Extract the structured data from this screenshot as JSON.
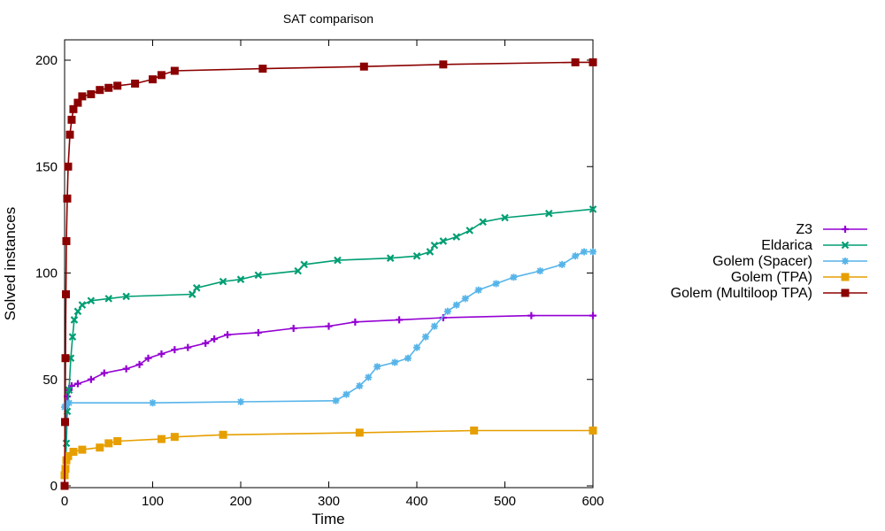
{
  "chart_data": {
    "type": "line",
    "title": "SAT comparison",
    "xlabel": "Time",
    "ylabel": "Solved instances",
    "xlim": [
      0,
      600
    ],
    "ylim": [
      0,
      210
    ],
    "xticks": [
      0,
      100,
      200,
      300,
      400,
      500,
      600
    ],
    "yticks": [
      0,
      50,
      100,
      150,
      200
    ],
    "grid": false,
    "legend_position": "right",
    "series": [
      {
        "name": "Z3",
        "color": "#9400d3",
        "marker": "plus",
        "points": [
          [
            0,
            0
          ],
          [
            1,
            30
          ],
          [
            2,
            38
          ],
          [
            3,
            42
          ],
          [
            5,
            45
          ],
          [
            8,
            47
          ],
          [
            15,
            48
          ],
          [
            30,
            50
          ],
          [
            45,
            53
          ],
          [
            70,
            55
          ],
          [
            85,
            57
          ],
          [
            95,
            60
          ],
          [
            110,
            62
          ],
          [
            125,
            64
          ],
          [
            140,
            65
          ],
          [
            160,
            67
          ],
          [
            170,
            69
          ],
          [
            185,
            71
          ],
          [
            220,
            72
          ],
          [
            260,
            74
          ],
          [
            300,
            75
          ],
          [
            330,
            77
          ],
          [
            380,
            78
          ],
          [
            430,
            79
          ],
          [
            530,
            80
          ],
          [
            600,
            80
          ]
        ]
      },
      {
        "name": "Eldarica",
        "color": "#009e73",
        "marker": "x",
        "points": [
          [
            0,
            0
          ],
          [
            2,
            20
          ],
          [
            3,
            35
          ],
          [
            5,
            45
          ],
          [
            7,
            60
          ],
          [
            9,
            70
          ],
          [
            11,
            78
          ],
          [
            15,
            82
          ],
          [
            20,
            85
          ],
          [
            30,
            87
          ],
          [
            50,
            88
          ],
          [
            70,
            89
          ],
          [
            145,
            90
          ],
          [
            150,
            93
          ],
          [
            180,
            96
          ],
          [
            200,
            97
          ],
          [
            220,
            99
          ],
          [
            265,
            101
          ],
          [
            272,
            104
          ],
          [
            310,
            106
          ],
          [
            370,
            107
          ],
          [
            400,
            108
          ],
          [
            415,
            110
          ],
          [
            420,
            113
          ],
          [
            430,
            115
          ],
          [
            445,
            117
          ],
          [
            460,
            120
          ],
          [
            475,
            124
          ],
          [
            500,
            126
          ],
          [
            550,
            128
          ],
          [
            600,
            130
          ]
        ]
      },
      {
        "name": "Golem (Spacer)",
        "color": "#56b4e9",
        "marker": "star",
        "points": [
          [
            0,
            37
          ],
          [
            2,
            38
          ],
          [
            5,
            39
          ],
          [
            100,
            39
          ],
          [
            200,
            39.5
          ],
          [
            308,
            40
          ],
          [
            320,
            43
          ],
          [
            335,
            47
          ],
          [
            345,
            51
          ],
          [
            355,
            56
          ],
          [
            375,
            58
          ],
          [
            390,
            60
          ],
          [
            400,
            65
          ],
          [
            410,
            70
          ],
          [
            420,
            75
          ],
          [
            435,
            82
          ],
          [
            445,
            85
          ],
          [
            455,
            88
          ],
          [
            470,
            92
          ],
          [
            490,
            95
          ],
          [
            510,
            98
          ],
          [
            540,
            101
          ],
          [
            565,
            104
          ],
          [
            580,
            108
          ],
          [
            590,
            110
          ],
          [
            600,
            110
          ]
        ]
      },
      {
        "name": "Golem (TPA)",
        "color": "#e69f00",
        "marker": "square",
        "points": [
          [
            0,
            5
          ],
          [
            1,
            8
          ],
          [
            2,
            12
          ],
          [
            4,
            14
          ],
          [
            10,
            16
          ],
          [
            20,
            17
          ],
          [
            40,
            18
          ],
          [
            50,
            20
          ],
          [
            60,
            21
          ],
          [
            110,
            22
          ],
          [
            125,
            23
          ],
          [
            180,
            24
          ],
          [
            335,
            25
          ],
          [
            465,
            26
          ],
          [
            600,
            26
          ]
        ]
      },
      {
        "name": "Golem (Multiloop TPA)",
        "color": "#8b0000",
        "marker": "square",
        "points": [
          [
            0,
            0
          ],
          [
            0.5,
            30
          ],
          [
            1,
            60
          ],
          [
            1.5,
            90
          ],
          [
            2,
            115
          ],
          [
            3,
            135
          ],
          [
            4,
            150
          ],
          [
            6,
            165
          ],
          [
            8,
            172
          ],
          [
            10,
            177
          ],
          [
            15,
            180
          ],
          [
            20,
            183
          ],
          [
            30,
            184
          ],
          [
            40,
            186
          ],
          [
            50,
            187
          ],
          [
            60,
            188
          ],
          [
            80,
            189
          ],
          [
            100,
            191
          ],
          [
            110,
            193
          ],
          [
            125,
            195
          ],
          [
            225,
            196
          ],
          [
            340,
            197
          ],
          [
            430,
            198
          ],
          [
            580,
            199
          ],
          [
            600,
            199
          ]
        ]
      }
    ]
  }
}
